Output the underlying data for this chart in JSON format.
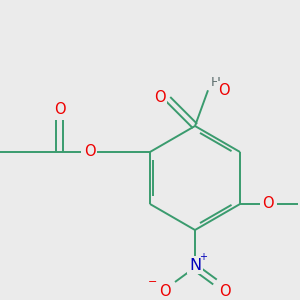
{
  "background_color": "#ebebeb",
  "bond_color": "#3a9b6e",
  "o_color": "#ee0000",
  "n_color": "#0000bb",
  "h_color": "#607070",
  "figsize": [
    3.0,
    3.0
  ],
  "dpi": 100,
  "xlim": [
    0,
    300
  ],
  "ylim": [
    0,
    300
  ]
}
